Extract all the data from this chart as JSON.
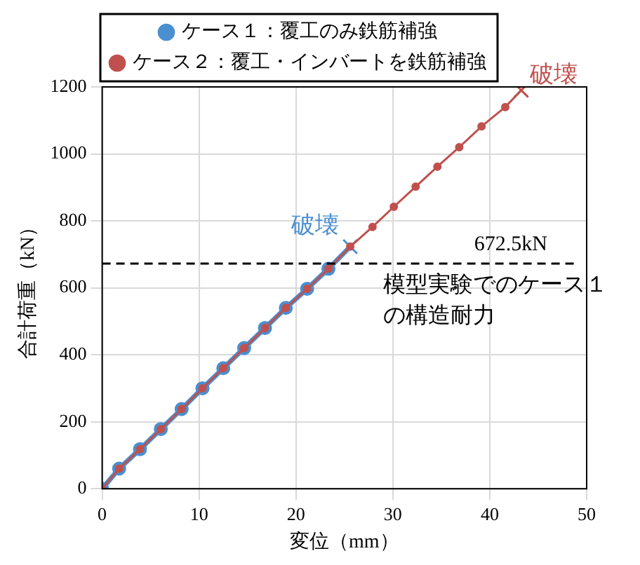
{
  "chart_data": {
    "type": "line",
    "xlabel": "変位（mm）",
    "ylabel": "合計荷重（kN）",
    "xlim": [
      0,
      50
    ],
    "xticks": [
      0,
      10,
      20,
      30,
      40,
      50
    ],
    "ylim": [
      0,
      1200
    ],
    "yticks": [
      0,
      200,
      400,
      600,
      800,
      1000,
      1200
    ],
    "grid": true,
    "legend": "top",
    "marker": "circle",
    "line_style": "solid",
    "series": [
      {
        "name": "ケース１：覆工のみ鉄筋補強",
        "color": "#4a8fd0",
        "x": [
          0,
          1.75,
          3.9,
          6.05,
          8.2,
          10.35,
          12.5,
          14.65,
          16.8,
          18.95,
          21.15,
          23.35,
          25.6
        ],
        "values": [
          0,
          60,
          118,
          178,
          238,
          300,
          360,
          420,
          480,
          540,
          597,
          657,
          723
        ]
      },
      {
        "name": "ケース２：覆工・インバートを鉄筋補強",
        "color": "#c0504d",
        "x": [
          0,
          1.75,
          3.9,
          6.05,
          8.2,
          10.35,
          12.5,
          14.65,
          16.8,
          18.95,
          21.15,
          23.35,
          25.6,
          27.9,
          30.1,
          32.35,
          34.6,
          36.85,
          39.15,
          41.6,
          43.25
        ],
        "values": [
          0,
          60,
          118,
          178,
          238,
          300,
          360,
          420,
          480,
          540,
          597,
          657,
          723,
          782,
          842,
          902,
          962,
          1020,
          1082,
          1140,
          1190
        ]
      }
    ],
    "ref_lines": [
      {
        "axis": "y",
        "value": 672.5,
        "label": "672.5kN",
        "color": "#000000",
        "line_style": "dashed"
      }
    ],
    "annotations": [
      {
        "text": "破壊",
        "x": 25.6,
        "y": 723
      },
      {
        "text": "破壊",
        "x": 43.25,
        "y": 1190
      },
      "模型実験でのケース１の構造耐力"
    ]
  }
}
